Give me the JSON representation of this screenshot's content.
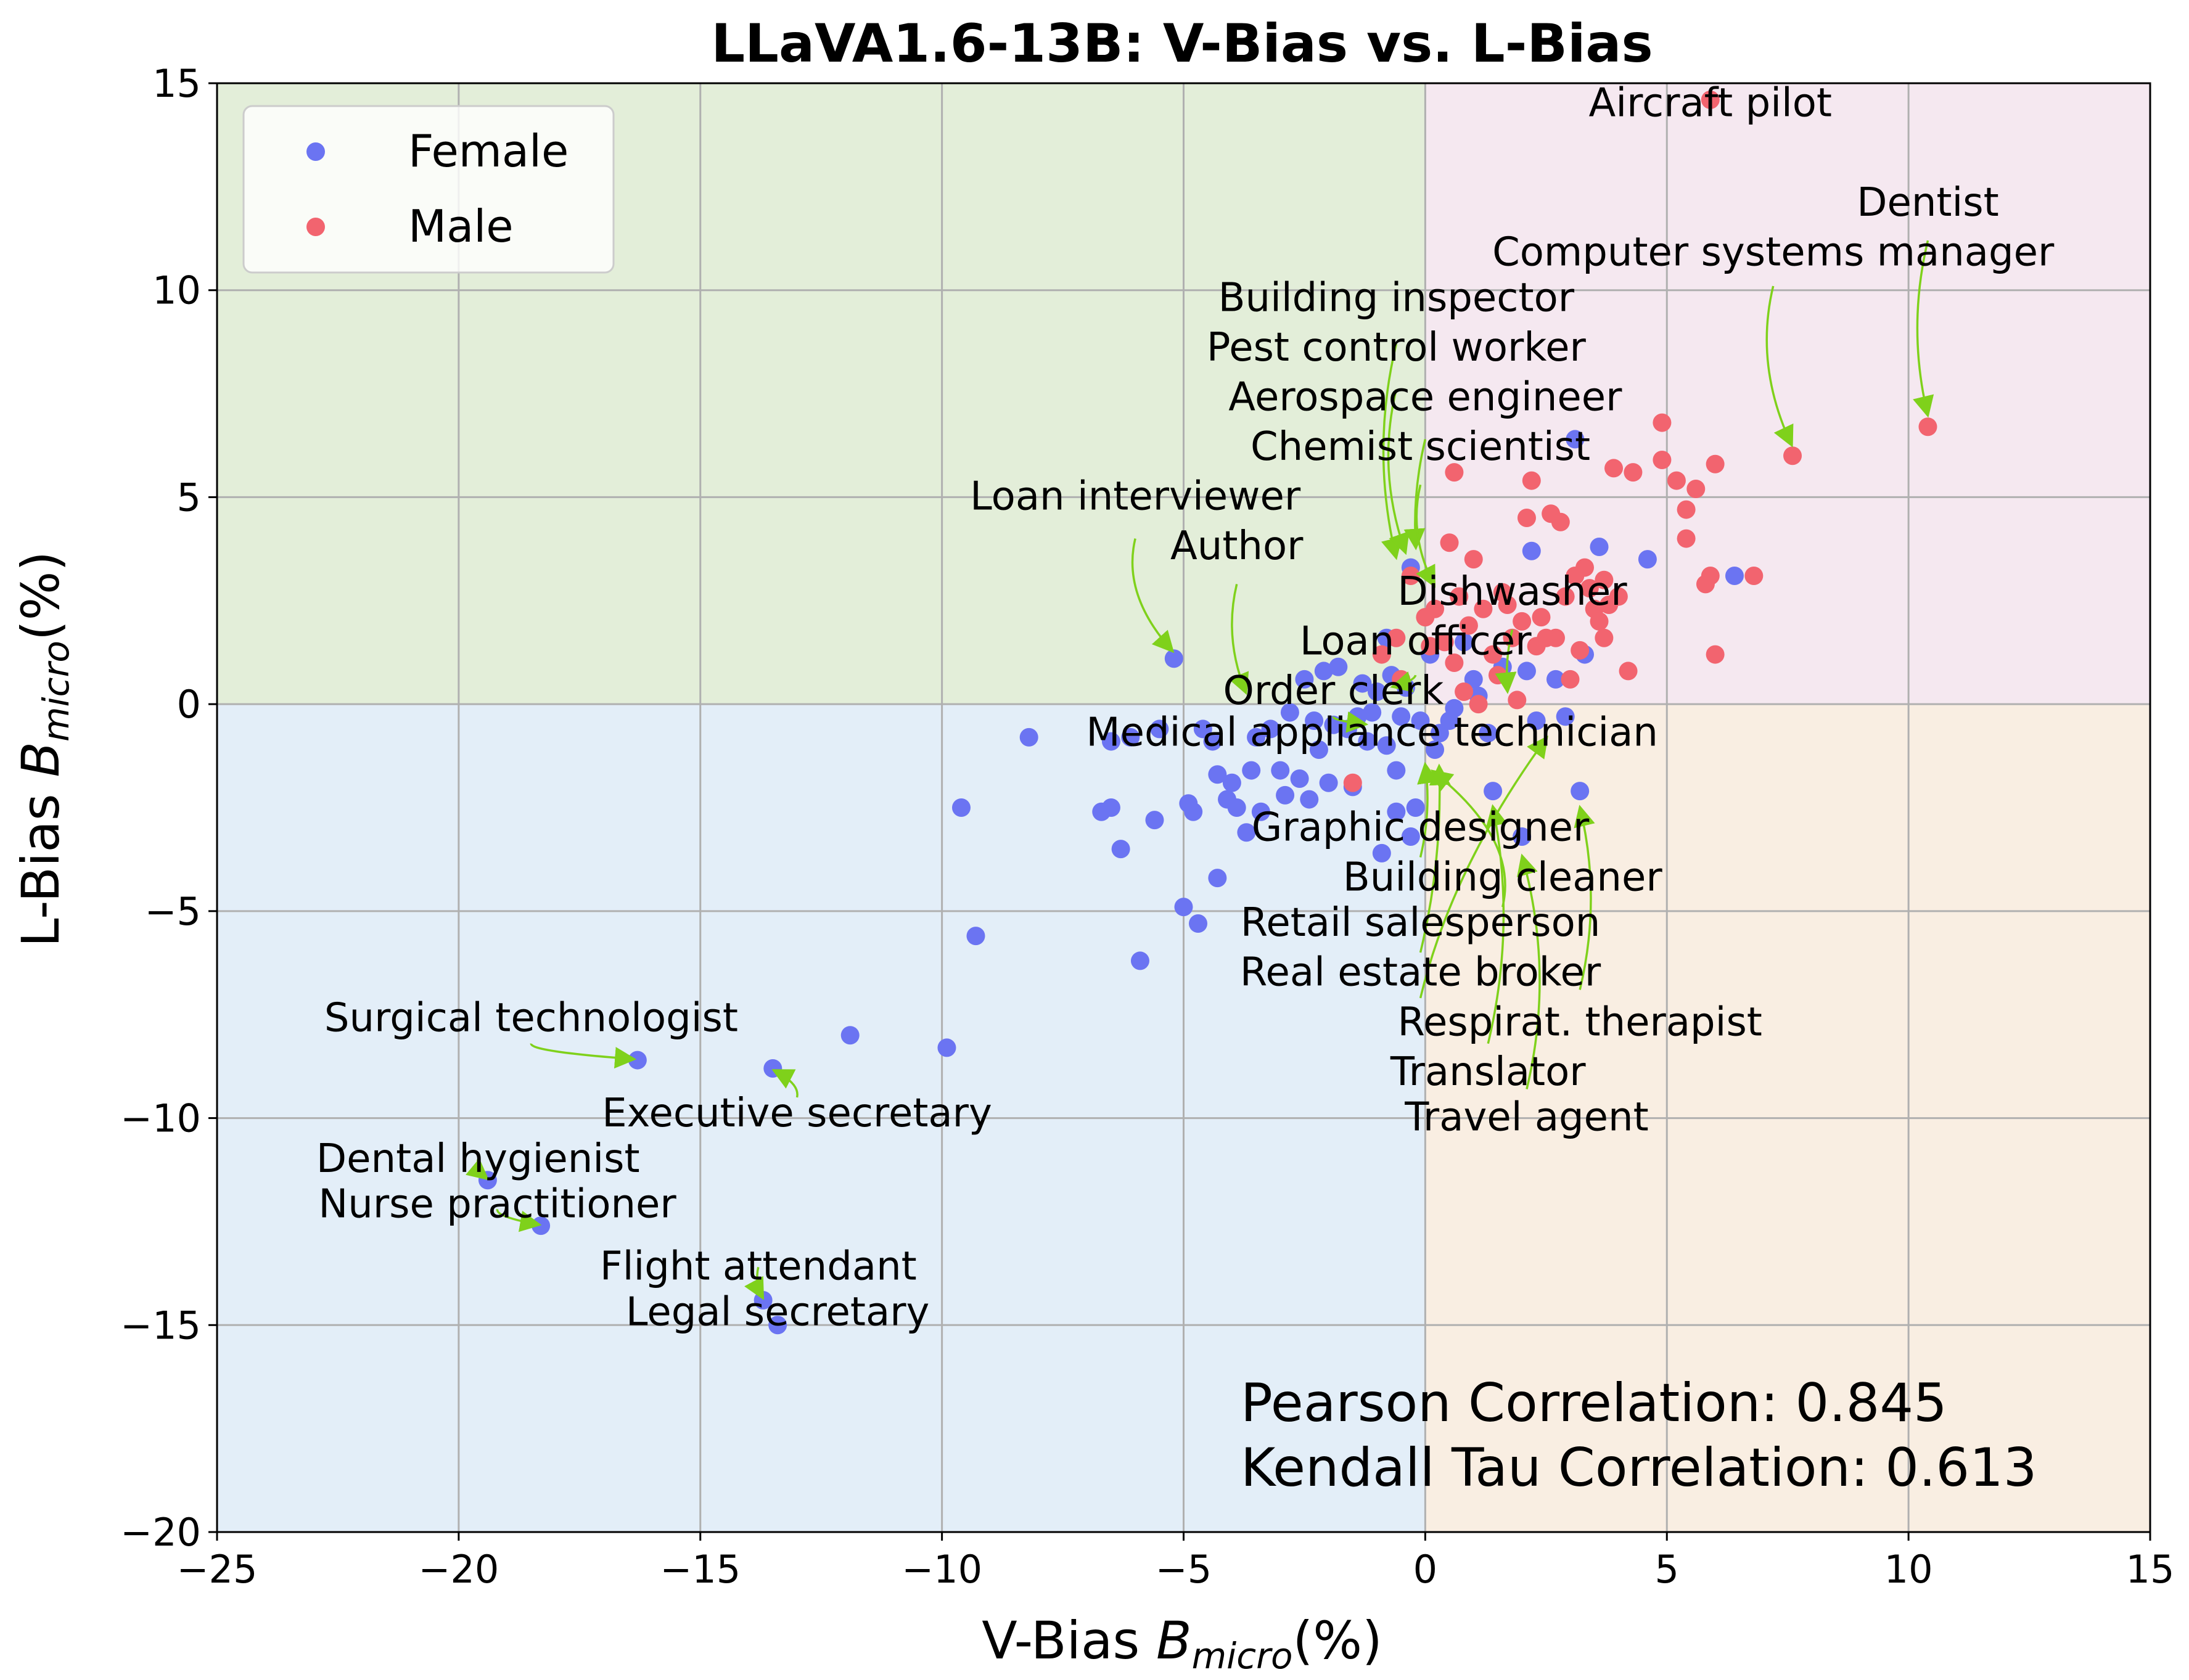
{
  "chart_data": {
    "type": "scatter",
    "title": "LLaVA1.6-13B: V-Bias vs. L-Bias",
    "xlabel": {
      "prefix": "V-Bias",
      "symbol": "B",
      "sub": "micro",
      "suffix": "(%)"
    },
    "ylabel": {
      "prefix": "L-Bias",
      "symbol": "B",
      "sub": "micro",
      "suffix": "(%)"
    },
    "xlim": [
      -25,
      15
    ],
    "ylim": [
      -20,
      15
    ],
    "xticks": [
      -25,
      -20,
      -15,
      -10,
      -5,
      0,
      5,
      10,
      15
    ],
    "yticks": [
      -20,
      -15,
      -10,
      -5,
      0,
      5,
      10,
      15
    ],
    "grid": true,
    "legend_position": "top-left",
    "quadrant_colors": {
      "top_left": "#e3eed9",
      "top_right": "#f5e8f0",
      "bottom_left": "#e3eef8",
      "bottom_right": "#f9eee2"
    },
    "annotation_color": "#7fd11b",
    "series": [
      {
        "name": "Female",
        "color": "#6b74f2",
        "points": [
          [
            -19.4,
            -11.5
          ],
          [
            -18.3,
            -12.6
          ],
          [
            -16.3,
            -8.6
          ],
          [
            -13.7,
            -14.4
          ],
          [
            -13.5,
            -8.8
          ],
          [
            -13.4,
            -15.0
          ],
          [
            -11.9,
            -8.0
          ],
          [
            -9.9,
            -8.3
          ],
          [
            -9.6,
            -2.5
          ],
          [
            -9.3,
            -5.6
          ],
          [
            -8.2,
            -0.8
          ],
          [
            -6.7,
            -2.6
          ],
          [
            -6.5,
            -2.5
          ],
          [
            -6.5,
            -0.9
          ],
          [
            -6.3,
            -3.5
          ],
          [
            -6.1,
            -0.8
          ],
          [
            -5.9,
            -6.2
          ],
          [
            -5.6,
            -2.8
          ],
          [
            -5.5,
            -0.6
          ],
          [
            -5.2,
            1.1
          ],
          [
            -5.0,
            -4.9
          ],
          [
            -4.9,
            -2.4
          ],
          [
            -4.8,
            -2.6
          ],
          [
            -4.7,
            -5.3
          ],
          [
            -4.6,
            -0.6
          ],
          [
            -4.4,
            -0.9
          ],
          [
            -4.3,
            -1.7
          ],
          [
            -4.3,
            -4.2
          ],
          [
            -4.1,
            -2.3
          ],
          [
            -4.0,
            -1.9
          ],
          [
            -3.9,
            -2.5
          ],
          [
            -3.7,
            -3.1
          ],
          [
            -3.6,
            -1.6
          ],
          [
            -3.5,
            -0.8
          ],
          [
            -3.4,
            -2.6
          ],
          [
            -3.2,
            -0.6
          ],
          [
            -3.0,
            -1.6
          ],
          [
            -2.9,
            -2.2
          ],
          [
            -2.8,
            -0.2
          ],
          [
            -2.6,
            -1.8
          ],
          [
            -2.5,
            0.6
          ],
          [
            -2.4,
            -2.3
          ],
          [
            -2.3,
            -0.4
          ],
          [
            -2.2,
            -1.1
          ],
          [
            -2.1,
            0.8
          ],
          [
            -2.0,
            -1.9
          ],
          [
            -1.9,
            -0.5
          ],
          [
            -1.8,
            0.9
          ],
          [
            -1.6,
            -0.6
          ],
          [
            -1.5,
            -2.0
          ],
          [
            -1.4,
            -0.3
          ],
          [
            -1.3,
            0.5
          ],
          [
            -1.2,
            -0.9
          ],
          [
            -1.1,
            -0.2
          ],
          [
            -1.0,
            0.3
          ],
          [
            -0.9,
            -3.6
          ],
          [
            -0.8,
            -1.0
          ],
          [
            -0.8,
            1.6
          ],
          [
            -0.7,
            0.7
          ],
          [
            -0.6,
            -2.6
          ],
          [
            -0.6,
            -1.6
          ],
          [
            -0.5,
            -0.3
          ],
          [
            -0.4,
            0.4
          ],
          [
            -0.3,
            3.3
          ],
          [
            -0.3,
            -3.2
          ],
          [
            -0.2,
            -2.5
          ],
          [
            -0.1,
            -0.4
          ],
          [
            0.1,
            1.2
          ],
          [
            0.2,
            -1.1
          ],
          [
            0.3,
            -0.7
          ],
          [
            0.5,
            -0.4
          ],
          [
            0.6,
            -0.1
          ],
          [
            0.8,
            1.5
          ],
          [
            1.0,
            0.6
          ],
          [
            1.1,
            0.2
          ],
          [
            1.3,
            -0.7
          ],
          [
            1.4,
            -2.1
          ],
          [
            1.6,
            0.9
          ],
          [
            2.0,
            -3.2
          ],
          [
            2.1,
            0.8
          ],
          [
            2.2,
            3.7
          ],
          [
            2.3,
            -0.4
          ],
          [
            2.7,
            0.6
          ],
          [
            2.9,
            -0.3
          ],
          [
            3.1,
            6.4
          ],
          [
            3.2,
            -2.1
          ],
          [
            3.3,
            1.2
          ],
          [
            3.6,
            3.8
          ],
          [
            4.6,
            3.5
          ],
          [
            6.4,
            3.1
          ]
        ]
      },
      {
        "name": "Male",
        "color": "#f2646f",
        "points": [
          [
            -1.5,
            -1.9
          ],
          [
            -0.9,
            1.2
          ],
          [
            -0.6,
            1.6
          ],
          [
            -0.5,
            0.6
          ],
          [
            -0.3,
            3.1
          ],
          [
            0.0,
            2.1
          ],
          [
            0.1,
            1.4
          ],
          [
            0.2,
            2.3
          ],
          [
            0.4,
            1.5
          ],
          [
            0.5,
            3.9
          ],
          [
            0.6,
            1.0
          ],
          [
            0.7,
            2.6
          ],
          [
            0.8,
            0.3
          ],
          [
            0.9,
            1.9
          ],
          [
            1.0,
            3.5
          ],
          [
            1.1,
            0.0
          ],
          [
            1.2,
            2.3
          ],
          [
            1.4,
            1.2
          ],
          [
            1.5,
            0.7
          ],
          [
            1.6,
            2.7
          ],
          [
            1.7,
            2.4
          ],
          [
            1.8,
            1.6
          ],
          [
            1.9,
            0.1
          ],
          [
            2.0,
            2.0
          ],
          [
            2.1,
            4.5
          ],
          [
            2.2,
            5.4
          ],
          [
            2.3,
            1.4
          ],
          [
            2.4,
            2.1
          ],
          [
            2.5,
            1.6
          ],
          [
            2.6,
            4.6
          ],
          [
            2.7,
            1.6
          ],
          [
            2.8,
            4.4
          ],
          [
            2.9,
            2.6
          ],
          [
            3.0,
            0.6
          ],
          [
            3.1,
            3.1
          ],
          [
            3.2,
            1.3
          ],
          [
            3.3,
            3.3
          ],
          [
            3.4,
            2.8
          ],
          [
            3.5,
            2.3
          ],
          [
            3.6,
            2.0
          ],
          [
            3.7,
            1.6
          ],
          [
            3.7,
            3.0
          ],
          [
            3.8,
            2.4
          ],
          [
            3.9,
            5.7
          ],
          [
            4.0,
            2.6
          ],
          [
            4.2,
            0.8
          ],
          [
            4.3,
            5.6
          ],
          [
            4.9,
            6.8
          ],
          [
            4.9,
            5.9
          ],
          [
            5.2,
            5.4
          ],
          [
            5.4,
            4.7
          ],
          [
            5.4,
            4.0
          ],
          [
            5.6,
            5.2
          ],
          [
            5.8,
            2.9
          ],
          [
            5.9,
            3.1
          ],
          [
            5.9,
            14.6
          ],
          [
            6.0,
            1.2
          ],
          [
            6.0,
            5.8
          ],
          [
            6.8,
            3.1
          ],
          [
            7.6,
            6.0
          ],
          [
            10.4,
            6.7
          ],
          [
            0.6,
            5.6
          ]
        ]
      }
    ],
    "annotations": [
      {
        "text": "Aircraft pilot",
        "text_xy": [
          5.9,
          14.2
        ],
        "point": [
          5.9,
          14.6
        ],
        "arrow": false
      },
      {
        "text": "Dentist",
        "text_xy": [
          10.4,
          11.8
        ],
        "point": [
          10.4,
          6.7
        ],
        "arrow": true,
        "start_y": 11.2
      },
      {
        "text": "Computer systems manager",
        "text_xy": [
          7.2,
          10.6
        ],
        "point": [
          7.6,
          6.0
        ],
        "arrow": true,
        "start_y": 10.1
      },
      {
        "text": "Building inspector",
        "text_xy": [
          -0.6,
          9.5
        ],
        "point": [
          -0.6,
          3.2
        ],
        "arrow": true,
        "start_y": 8.7
      },
      {
        "text": "Pest control worker",
        "text_xy": [
          -0.6,
          8.3
        ],
        "point": [
          -0.4,
          3.4
        ],
        "arrow": true,
        "start_y": 7.6
      },
      {
        "text": "Aerospace engineer",
        "text_xy": [
          0.0,
          7.1
        ],
        "point": [
          -0.2,
          3.6
        ],
        "arrow": true,
        "start_y": 6.4
      },
      {
        "text": "Chemist scientist",
        "text_xy": [
          -0.1,
          5.9
        ],
        "point": [
          0.2,
          2.7
        ],
        "arrow": true,
        "start_y": 5.3
      },
      {
        "text": "Loan interviewer",
        "text_xy": [
          -6.0,
          4.7
        ],
        "point": [
          -5.2,
          1.1
        ],
        "arrow": true,
        "start_y": 4.0
      },
      {
        "text": "Author",
        "text_xy": [
          -3.9,
          3.5
        ],
        "point": [
          -3.7,
          0.1
        ],
        "arrow": true,
        "start_y": 2.9
      },
      {
        "text": "Dishwasher",
        "text_xy": [
          1.8,
          2.4
        ],
        "point": [
          1.7,
          0.2
        ],
        "arrow": true,
        "start_y": 1.8
      },
      {
        "text": "Loan officer",
        "text_xy": [
          -0.2,
          1.2
        ],
        "point": [
          -0.7,
          0.4
        ],
        "arrow": true,
        "start_y": 0.7
      },
      {
        "text": "Order clerk",
        "text_xy": [
          -1.9,
          0.0
        ],
        "point": [
          -1.2,
          -0.5
        ],
        "arrow": true,
        "start_y": -0.3
      },
      {
        "text": "Medical appliance technician",
        "text_xy": [
          -1.1,
          -1.0
        ],
        "point": [
          0.0,
          -1.2
        ],
        "arrow": false
      },
      {
        "text": "Graphic designer",
        "text_xy": [
          -0.1,
          -3.3
        ],
        "point": [
          0.0,
          -1.3
        ],
        "arrow": true,
        "start_y": -3.7
      },
      {
        "text": "Building cleaner",
        "text_xy": [
          1.6,
          -4.5
        ],
        "point": [
          0.1,
          -1.4
        ],
        "arrow": true,
        "start_y": -4.9
      },
      {
        "text": "Retail salesperson",
        "text_xy": [
          -0.1,
          -5.6
        ],
        "point": [
          0.3,
          -1.2
        ],
        "arrow": true,
        "start_y": -6.0
      },
      {
        "text": "Real estate broker",
        "text_xy": [
          -0.1,
          -6.8
        ],
        "point": [
          2.6,
          -0.4
        ],
        "arrow": true,
        "start_y": -7.1
      },
      {
        "text": "Respirat. therapist",
        "text_xy": [
          3.2,
          -8.0
        ],
        "point": [
          3.2,
          -2.2
        ],
        "arrow": true,
        "start_y": -6.9
      },
      {
        "text": "Translator",
        "text_xy": [
          1.3,
          -9.2
        ],
        "point": [
          1.4,
          -2.1
        ],
        "arrow": true,
        "start_y": -8.2
      },
      {
        "text": "Travel agent",
        "text_xy": [
          2.1,
          -10.3
        ],
        "point": [
          2.0,
          -3.3
        ],
        "arrow": true,
        "start_y": -9.3
      },
      {
        "text": "Surgical technologist",
        "text_xy": [
          -18.5,
          -7.9
        ],
        "point": [
          -16.3,
          -8.6
        ],
        "arrow": true,
        "start_y": -8.2
      },
      {
        "text": "Executive secretary",
        "text_xy": [
          -13.0,
          -10.2
        ],
        "point": [
          -13.5,
          -8.8
        ],
        "arrow": true,
        "start_y": -9.5
      },
      {
        "text": "Dental hygienist",
        "text_xy": [
          -19.6,
          -11.3
        ],
        "point": [
          -19.4,
          -11.5
        ],
        "arrow": true,
        "start_y": -11.0
      },
      {
        "text": "Nurse practitioner",
        "text_xy": [
          -19.2,
          -12.4
        ],
        "point": [
          -18.3,
          -12.6
        ],
        "arrow": true,
        "start_y": -12.2
      },
      {
        "text": "Flight attendant",
        "text_xy": [
          -13.8,
          -13.9
        ],
        "point": [
          -13.7,
          -14.4
        ],
        "arrow": true,
        "start_y": -13.6
      },
      {
        "text": "Legal secretary",
        "text_xy": [
          -13.4,
          -15.0
        ],
        "point": [
          -13.4,
          -15.0
        ],
        "arrow": false
      }
    ],
    "stats": [
      "Pearson Correlation: 0.845",
      "Kendall Tau Correlation: 0.613"
    ]
  }
}
